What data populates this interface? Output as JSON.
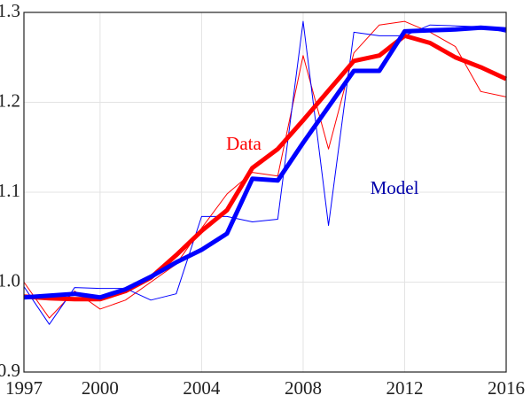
{
  "chart_data": {
    "type": "line",
    "annotations": [
      {
        "text": "Data",
        "color": "#ff0000"
      },
      {
        "text": "Model",
        "color": "#0000aa"
      }
    ],
    "x": [
      1997,
      1998,
      1999,
      2000,
      2001,
      2002,
      2003,
      2004,
      2005,
      2006,
      2007,
      2008,
      2009,
      2010,
      2011,
      2012,
      2013,
      2014,
      2015,
      2016
    ],
    "series": [
      {
        "color": "#ff0000",
        "linewidth": 1,
        "values": [
          1.0,
          0.96,
          0.99,
          0.97,
          0.98,
          1.0,
          1.02,
          1.06,
          1.098,
          1.122,
          1.118,
          1.252,
          1.148,
          1.255,
          1.286,
          1.29,
          1.278,
          1.262,
          1.212,
          1.206
        ]
      },
      {
        "color": "#0000ff",
        "linewidth": 1,
        "values": [
          0.995,
          0.953,
          0.994,
          0.993,
          0.993,
          0.98,
          0.987,
          1.073,
          1.073,
          1.067,
          1.07,
          1.29,
          1.063,
          1.278,
          1.274,
          1.274,
          1.286,
          1.285,
          1.284,
          1.278
        ]
      },
      {
        "color": "#ff0000",
        "linewidth": 5,
        "values": [
          0.984,
          0.982,
          0.981,
          0.981,
          0.99,
          1.005,
          1.03,
          1.057,
          1.08,
          1.127,
          1.148,
          1.18,
          1.213,
          1.246,
          1.252,
          1.274,
          1.266,
          1.25,
          1.239,
          1.226
        ]
      },
      {
        "color": "#0000ff",
        "linewidth": 5,
        "values": [
          0.983,
          0.985,
          0.987,
          0.983,
          0.992,
          1.006,
          1.022,
          1.036,
          1.054,
          1.115,
          1.113,
          1.155,
          1.195,
          1.235,
          1.235,
          1.279,
          1.28,
          1.281,
          1.283,
          1.281
        ]
      }
    ],
    "xlim": [
      1997,
      2016
    ],
    "xticks": [
      1997,
      2000,
      2004,
      2008,
      2012,
      2016
    ],
    "ylim": [
      0.9,
      1.3
    ],
    "yticks": [
      0.9,
      {
        "value": 1,
        "label": "1.0"
      },
      1.1,
      1.2,
      1.3
    ],
    "grid": true
  }
}
